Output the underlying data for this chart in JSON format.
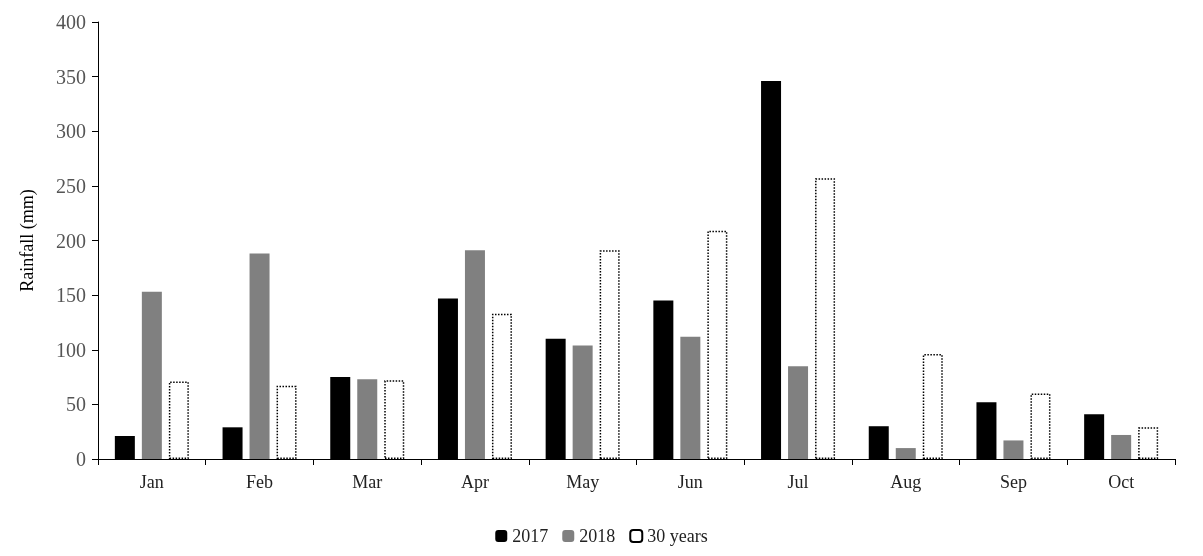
{
  "chart_data": {
    "type": "bar",
    "ylabel": "Rainfall (mm)",
    "categories": [
      "Jan",
      "Feb",
      "Mar",
      "Apr",
      "May",
      "Jun",
      "Jul",
      "Aug",
      "Sep",
      "Oct"
    ],
    "series": [
      {
        "name": "2017",
        "color": "#000000",
        "values": [
          21,
          29,
          75,
          147,
          110,
          145,
          346,
          30,
          52,
          41
        ]
      },
      {
        "name": "2018",
        "color": "#808080",
        "values": [
          153,
          188,
          73,
          191,
          104,
          112,
          85,
          10,
          17,
          22
        ]
      },
      {
        "name": "30 years",
        "color": "#ffffff",
        "line_style": "dotted",
        "values": [
          71,
          67,
          72,
          133,
          191,
          209,
          257,
          96,
          60,
          29
        ]
      }
    ],
    "ylim": [
      0,
      400
    ],
    "yticks": [
      0,
      50,
      100,
      150,
      200,
      250,
      300,
      350,
      400
    ],
    "grid": false,
    "legend": "bottom"
  }
}
